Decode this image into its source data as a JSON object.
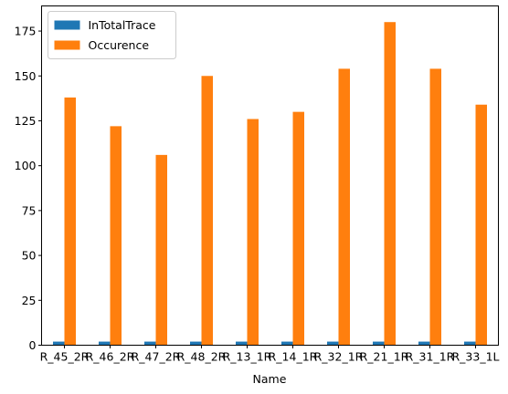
{
  "chart_data": {
    "type": "bar",
    "title": "",
    "xlabel": "Name",
    "ylabel": "",
    "categories": [
      "R_45_2R",
      "R_46_2R",
      "R_47_2R",
      "R_48_2R",
      "R_13_1R",
      "R_14_1R",
      "R_32_1R",
      "R_21_1R",
      "R_31_1R",
      "R_33_1L"
    ],
    "series": [
      {
        "name": "InTotalTrace",
        "color": "#1f77b4",
        "values": [
          2,
          2,
          2,
          2,
          2,
          2,
          2,
          2,
          2,
          2
        ]
      },
      {
        "name": "Occurence",
        "color": "#ff7f0e",
        "values": [
          138,
          122,
          106,
          150,
          126,
          130,
          154,
          180,
          154,
          134
        ]
      }
    ],
    "ylim": [
      0,
      189
    ],
    "yticks": [
      0,
      25,
      50,
      75,
      100,
      125,
      150,
      175
    ],
    "grid": false,
    "legend_position": "top-left"
  }
}
